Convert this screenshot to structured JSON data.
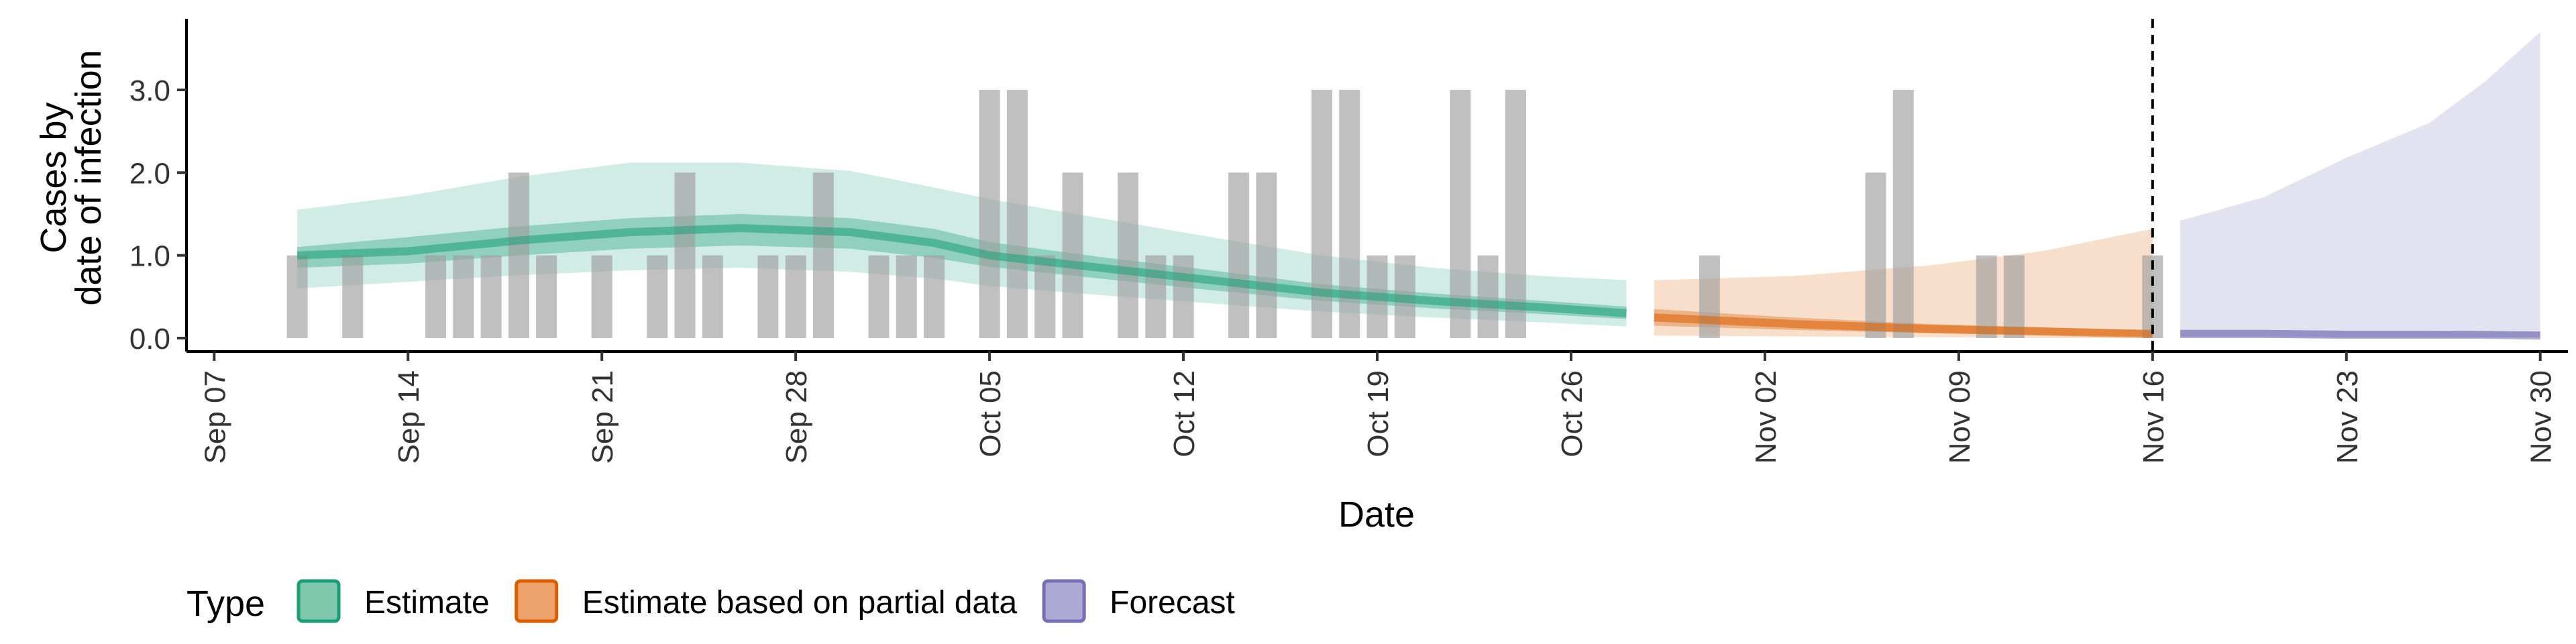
{
  "chart_data": {
    "type": "bar+area",
    "xlabel": "Date",
    "ylabel_line1": "Cases by",
    "ylabel_line2": "date of infection",
    "ylim": [
      0,
      3.85
    ],
    "y_ticks": [
      "0.0",
      "1.0",
      "2.0",
      "3.0"
    ],
    "x_ticks": [
      "Sep 07",
      "Sep 14",
      "Sep 21",
      "Sep 28",
      "Oct 05",
      "Oct 12",
      "Oct 19",
      "Oct 26",
      "Nov 02",
      "Nov 09",
      "Nov 16",
      "Nov 23",
      "Nov 30"
    ],
    "x_range": [
      "2020-09-06",
      "2020-12-01"
    ],
    "reference_line_date": "2020-11-16",
    "reported_cases": [
      {
        "date": "2020-09-10",
        "value": 1
      },
      {
        "date": "2020-09-12",
        "value": 1
      },
      {
        "date": "2020-09-15",
        "value": 1
      },
      {
        "date": "2020-09-16",
        "value": 1
      },
      {
        "date": "2020-09-17",
        "value": 1
      },
      {
        "date": "2020-09-18",
        "value": 2
      },
      {
        "date": "2020-09-19",
        "value": 1
      },
      {
        "date": "2020-09-21",
        "value": 1
      },
      {
        "date": "2020-09-23",
        "value": 1
      },
      {
        "date": "2020-09-24",
        "value": 2
      },
      {
        "date": "2020-09-25",
        "value": 1
      },
      {
        "date": "2020-09-27",
        "value": 1
      },
      {
        "date": "2020-09-28",
        "value": 1
      },
      {
        "date": "2020-09-29",
        "value": 2
      },
      {
        "date": "2020-10-01",
        "value": 1
      },
      {
        "date": "2020-10-02",
        "value": 1
      },
      {
        "date": "2020-10-03",
        "value": 1
      },
      {
        "date": "2020-10-05",
        "value": 3
      },
      {
        "date": "2020-10-06",
        "value": 3
      },
      {
        "date": "2020-10-07",
        "value": 1
      },
      {
        "date": "2020-10-08",
        "value": 2
      },
      {
        "date": "2020-10-10",
        "value": 2
      },
      {
        "date": "2020-10-11",
        "value": 1
      },
      {
        "date": "2020-10-12",
        "value": 1
      },
      {
        "date": "2020-10-14",
        "value": 2
      },
      {
        "date": "2020-10-15",
        "value": 2
      },
      {
        "date": "2020-10-17",
        "value": 3
      },
      {
        "date": "2020-10-18",
        "value": 3
      },
      {
        "date": "2020-10-19",
        "value": 1
      },
      {
        "date": "2020-10-20",
        "value": 1
      },
      {
        "date": "2020-10-22",
        "value": 3
      },
      {
        "date": "2020-10-23",
        "value": 1
      },
      {
        "date": "2020-10-24",
        "value": 3
      },
      {
        "date": "2020-10-31",
        "value": 1
      },
      {
        "date": "2020-11-06",
        "value": 2
      },
      {
        "date": "2020-11-07",
        "value": 3
      },
      {
        "date": "2020-11-10",
        "value": 1
      },
      {
        "date": "2020-11-11",
        "value": 1
      },
      {
        "date": "2020-11-16",
        "value": 1
      }
    ],
    "series": [
      {
        "name": "Estimate",
        "color": "#1B9E77",
        "points": [
          {
            "date": "2020-09-10",
            "median": 1.0,
            "lo50": 0.85,
            "hi50": 1.1,
            "lo90": 0.6,
            "hi90": 1.55
          },
          {
            "date": "2020-09-14",
            "median": 1.05,
            "lo50": 0.9,
            "hi50": 1.22,
            "lo90": 0.68,
            "hi90": 1.72
          },
          {
            "date": "2020-09-18",
            "median": 1.18,
            "lo50": 1.0,
            "hi50": 1.35,
            "lo90": 0.76,
            "hi90": 1.95
          },
          {
            "date": "2020-09-22",
            "median": 1.28,
            "lo50": 1.08,
            "hi50": 1.45,
            "lo90": 0.82,
            "hi90": 2.12
          },
          {
            "date": "2020-09-26",
            "median": 1.33,
            "lo50": 1.12,
            "hi50": 1.5,
            "lo90": 0.85,
            "hi90": 2.12
          },
          {
            "date": "2020-09-30",
            "median": 1.28,
            "lo50": 1.08,
            "hi50": 1.45,
            "lo90": 0.8,
            "hi90": 2.02
          },
          {
            "date": "2020-10-03",
            "median": 1.15,
            "lo50": 0.97,
            "hi50": 1.32,
            "lo90": 0.72,
            "hi90": 1.82
          },
          {
            "date": "2020-10-05",
            "median": 1.0,
            "lo50": 0.86,
            "hi50": 1.16,
            "lo90": 0.63,
            "hi90": 1.68
          },
          {
            "date": "2020-10-09",
            "median": 0.85,
            "lo50": 0.72,
            "hi50": 0.98,
            "lo90": 0.52,
            "hi90": 1.45
          },
          {
            "date": "2020-10-13",
            "median": 0.7,
            "lo50": 0.58,
            "hi50": 0.82,
            "lo90": 0.42,
            "hi90": 1.22
          },
          {
            "date": "2020-10-17",
            "median": 0.55,
            "lo50": 0.45,
            "hi50": 0.65,
            "lo90": 0.32,
            "hi90": 1.0
          },
          {
            "date": "2020-10-21",
            "median": 0.45,
            "lo50": 0.36,
            "hi50": 0.54,
            "lo90": 0.25,
            "hi90": 0.85
          },
          {
            "date": "2020-10-25",
            "median": 0.37,
            "lo50": 0.29,
            "hi50": 0.45,
            "lo90": 0.19,
            "hi90": 0.75
          },
          {
            "date": "2020-10-28",
            "median": 0.3,
            "lo50": 0.23,
            "hi50": 0.38,
            "lo90": 0.14,
            "hi90": 0.7
          }
        ]
      },
      {
        "name": "Estimate based on partial data",
        "color": "#D95F02",
        "points": [
          {
            "date": "2020-10-29",
            "median": 0.25,
            "lo50": 0.15,
            "hi50": 0.35,
            "lo90": 0.03,
            "hi90": 0.7
          },
          {
            "date": "2020-11-03",
            "median": 0.17,
            "lo50": 0.1,
            "hi50": 0.25,
            "lo90": 0.02,
            "hi90": 0.75
          },
          {
            "date": "2020-11-08",
            "median": 0.11,
            "lo50": 0.06,
            "hi50": 0.17,
            "lo90": 0.01,
            "hi90": 0.88
          },
          {
            "date": "2020-11-12",
            "median": 0.08,
            "lo50": 0.04,
            "hi50": 0.13,
            "lo90": 0.0,
            "hi90": 1.05
          },
          {
            "date": "2020-11-16",
            "median": 0.05,
            "lo50": 0.02,
            "hi50": 0.09,
            "lo90": 0.0,
            "hi90": 1.32
          }
        ]
      },
      {
        "name": "Forecast",
        "color": "#7570B3",
        "points": [
          {
            "date": "2020-11-17",
            "median": 0.05,
            "lo50": 0.02,
            "hi50": 0.1,
            "lo90": 0.0,
            "hi90": 1.42
          },
          {
            "date": "2020-11-20",
            "median": 0.05,
            "lo50": 0.02,
            "hi50": 0.1,
            "lo90": 0.0,
            "hi90": 1.7
          },
          {
            "date": "2020-11-23",
            "median": 0.04,
            "lo50": 0.01,
            "hi50": 0.09,
            "lo90": 0.0,
            "hi90": 2.18
          },
          {
            "date": "2020-11-26",
            "median": 0.04,
            "lo50": 0.01,
            "hi50": 0.09,
            "lo90": 0.0,
            "hi90": 2.6
          },
          {
            "date": "2020-11-28",
            "median": 0.04,
            "lo50": 0.01,
            "hi50": 0.08,
            "lo90": 0.0,
            "hi90": 3.1
          },
          {
            "date": "2020-11-30",
            "median": 0.03,
            "lo50": 0.01,
            "hi50": 0.08,
            "lo90": 0.0,
            "hi90": 3.7
          }
        ]
      }
    ],
    "legend": {
      "title": "Type",
      "position": "bottom",
      "items": [
        {
          "label": "Estimate",
          "fill": "#7FC7AD",
          "stroke": "#1B9E77"
        },
        {
          "label": "Estimate based on partial data",
          "fill": "#EBA36B",
          "stroke": "#D95F02"
        },
        {
          "label": "Forecast",
          "fill": "#ADAAD5",
          "stroke": "#7570B3"
        }
      ]
    }
  }
}
